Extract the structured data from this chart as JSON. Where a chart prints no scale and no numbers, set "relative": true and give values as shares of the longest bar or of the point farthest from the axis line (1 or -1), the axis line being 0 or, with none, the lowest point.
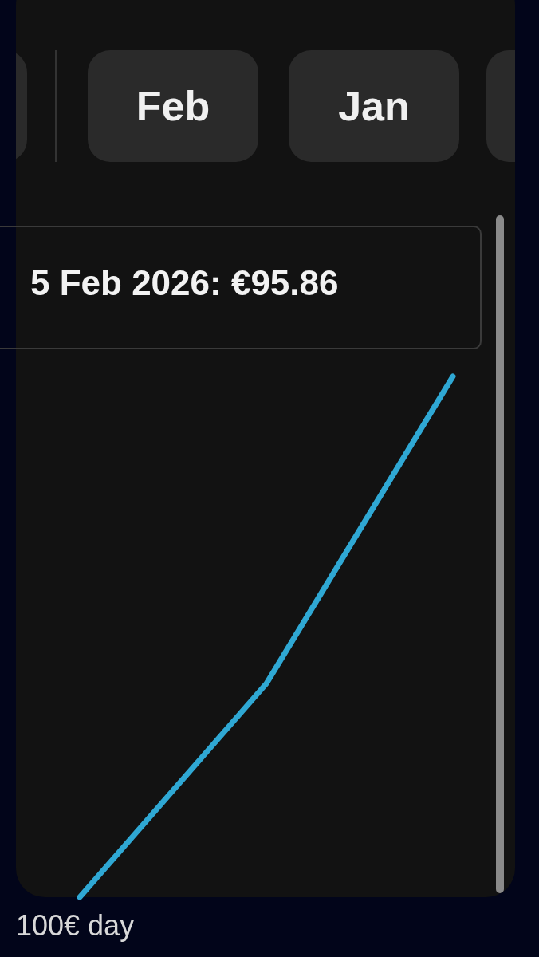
{
  "chart_data": {
    "type": "line",
    "relative": true,
    "categories": [
      null,
      null,
      null
    ],
    "series": [
      {
        "color": "#2fa8d4",
        "values": [
          0,
          0.41,
          1
        ]
      }
    ],
    "legend": false,
    "annotations": [
      "Feb",
      "Jan",
      "5 Feb 2026: €95.86",
      "100€ day"
    ]
  }
}
